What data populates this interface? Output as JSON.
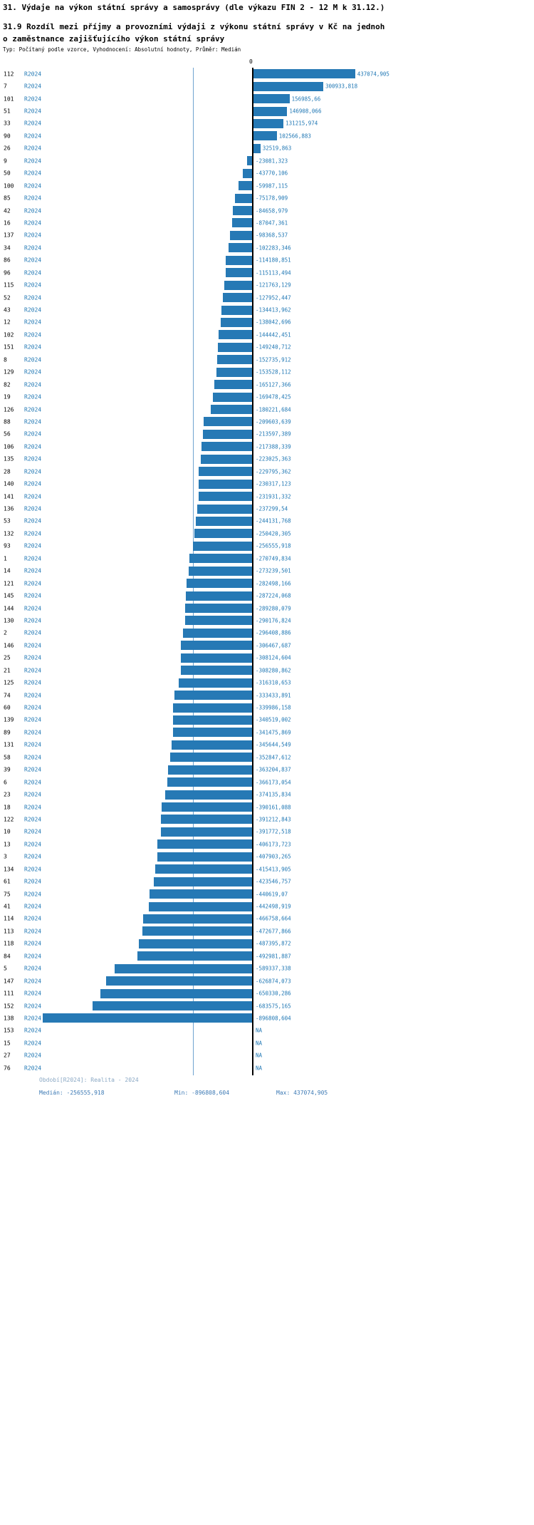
{
  "header": {
    "title": "31. Výdaje na výkon státní správy a samosprávy (dle výkazu FIN 2 - 12 M k 31.12.)",
    "subtitle_line1": "31.9 Rozdíl mezi příjmy a provozními výdaji z výkonu státní správy v Kč na jednoh",
    "subtitle_line2": "o zaměstnance zajišťujícího výkon státní správy",
    "meta": "Typ: Počítaný podle vzorce, Vyhodnocení: Absolutní hodnoty, Průměr: Medián"
  },
  "axis": {
    "zero_tick": "0"
  },
  "footer": {
    "period": "Období[R2024]: Realita - 2024",
    "median": "Medián: -256555,918",
    "min": "Min: -896808,604",
    "max": "Max: 437074,905"
  },
  "colors": {
    "bar": "#2679b5",
    "link": "#1f77b4",
    "median_line": "#6fa3cf",
    "zero_line": "#000000"
  },
  "chart_data": {
    "type": "bar",
    "orientation": "horizontal",
    "series": "R2024",
    "title": "31.9 Rozdíl mezi příjmy a provozními výdaji z výkonu státní správy v Kč na jednoho zaměstnance zajišťujícího výkon státní správy",
    "min": -896808.604,
    "max": 437074.905,
    "median": -256555.918,
    "rows": [
      {
        "id": "112",
        "value": 437074.905,
        "display": "437074,905"
      },
      {
        "id": "7",
        "value": 300933.818,
        "display": "300933,818"
      },
      {
        "id": "101",
        "value": 156985.66,
        "display": "156985,66"
      },
      {
        "id": "51",
        "value": 146908.066,
        "display": "146908,066"
      },
      {
        "id": "33",
        "value": 131215.974,
        "display": "131215,974"
      },
      {
        "id": "90",
        "value": 102566.883,
        "display": "102566,883"
      },
      {
        "id": "26",
        "value": 32519.863,
        "display": "32519,863"
      },
      {
        "id": "9",
        "value": -23081.323,
        "display": "-23081,323"
      },
      {
        "id": "50",
        "value": -43770.106,
        "display": "-43770,106"
      },
      {
        "id": "100",
        "value": -59987.115,
        "display": "-59987,115"
      },
      {
        "id": "85",
        "value": -75178.909,
        "display": "-75178,909"
      },
      {
        "id": "42",
        "value": -84658.979,
        "display": "-84658,979"
      },
      {
        "id": "16",
        "value": -87047.361,
        "display": "-87047,361"
      },
      {
        "id": "137",
        "value": -98368.537,
        "display": "-98368,537"
      },
      {
        "id": "34",
        "value": -102283.346,
        "display": "-102283,346"
      },
      {
        "id": "86",
        "value": -114180.851,
        "display": "-114180,851"
      },
      {
        "id": "96",
        "value": -115113.494,
        "display": "-115113,494"
      },
      {
        "id": "115",
        "value": -121763.129,
        "display": "-121763,129"
      },
      {
        "id": "52",
        "value": -127952.447,
        "display": "-127952,447"
      },
      {
        "id": "43",
        "value": -134413.962,
        "display": "-134413,962"
      },
      {
        "id": "12",
        "value": -138042.696,
        "display": "-138042,696"
      },
      {
        "id": "102",
        "value": -144442.451,
        "display": "-144442,451"
      },
      {
        "id": "151",
        "value": -149240.712,
        "display": "-149240,712"
      },
      {
        "id": "8",
        "value": -152735.912,
        "display": "-152735,912"
      },
      {
        "id": "129",
        "value": -153528.112,
        "display": "-153528,112"
      },
      {
        "id": "82",
        "value": -165127.366,
        "display": "-165127,366"
      },
      {
        "id": "19",
        "value": -169478.425,
        "display": "-169478,425"
      },
      {
        "id": "126",
        "value": -180221.684,
        "display": "-180221,684"
      },
      {
        "id": "88",
        "value": -209603.639,
        "display": "-209603,639"
      },
      {
        "id": "56",
        "value": -213597.389,
        "display": "-213597,389"
      },
      {
        "id": "106",
        "value": -217388.339,
        "display": "-217388,339"
      },
      {
        "id": "135",
        "value": -223025.363,
        "display": "-223025,363"
      },
      {
        "id": "28",
        "value": -229795.362,
        "display": "-229795,362"
      },
      {
        "id": "140",
        "value": -230317.123,
        "display": "-230317,123"
      },
      {
        "id": "141",
        "value": -231931.332,
        "display": "-231931,332"
      },
      {
        "id": "136",
        "value": -237299.54,
        "display": "-237299,54"
      },
      {
        "id": "53",
        "value": -244131.768,
        "display": "-244131,768"
      },
      {
        "id": "132",
        "value": -250420.305,
        "display": "-250420,305"
      },
      {
        "id": "93",
        "value": -256555.918,
        "display": "-256555,918"
      },
      {
        "id": "1",
        "value": -270749.834,
        "display": "-270749,834"
      },
      {
        "id": "14",
        "value": -273239.501,
        "display": "-273239,501"
      },
      {
        "id": "121",
        "value": -282498.166,
        "display": "-282498,166"
      },
      {
        "id": "145",
        "value": -287224.068,
        "display": "-287224,068"
      },
      {
        "id": "144",
        "value": -289280.079,
        "display": "-289280,079"
      },
      {
        "id": "130",
        "value": -290176.824,
        "display": "-290176,824"
      },
      {
        "id": "2",
        "value": -296408.886,
        "display": "-296408,886"
      },
      {
        "id": "146",
        "value": -306467.687,
        "display": "-306467,687"
      },
      {
        "id": "25",
        "value": -308124.604,
        "display": "-308124,604"
      },
      {
        "id": "21",
        "value": -308280.862,
        "display": "-308280,862"
      },
      {
        "id": "125",
        "value": -316310.653,
        "display": "-316310,653"
      },
      {
        "id": "74",
        "value": -333433.891,
        "display": "-333433,891"
      },
      {
        "id": "60",
        "value": -339986.158,
        "display": "-339986,158"
      },
      {
        "id": "139",
        "value": -340519.002,
        "display": "-340519,002"
      },
      {
        "id": "89",
        "value": -341475.869,
        "display": "-341475,869"
      },
      {
        "id": "131",
        "value": -345644.549,
        "display": "-345644,549"
      },
      {
        "id": "58",
        "value": -352847.612,
        "display": "-352847,612"
      },
      {
        "id": "39",
        "value": -363204.837,
        "display": "-363204,837"
      },
      {
        "id": "6",
        "value": -366173.054,
        "display": "-366173,054"
      },
      {
        "id": "23",
        "value": -374135.834,
        "display": "-374135,834"
      },
      {
        "id": "18",
        "value": -390161.088,
        "display": "-390161,088"
      },
      {
        "id": "122",
        "value": -391212.843,
        "display": "-391212,843"
      },
      {
        "id": "10",
        "value": -391772.518,
        "display": "-391772,518"
      },
      {
        "id": "13",
        "value": -406173.723,
        "display": "-406173,723"
      },
      {
        "id": "3",
        "value": -407903.265,
        "display": "-407903,265"
      },
      {
        "id": "134",
        "value": -415413.905,
        "display": "-415413,905"
      },
      {
        "id": "61",
        "value": -423546.757,
        "display": "-423546,757"
      },
      {
        "id": "75",
        "value": -440619.07,
        "display": "-440619,07"
      },
      {
        "id": "41",
        "value": -442498.919,
        "display": "-442498,919"
      },
      {
        "id": "114",
        "value": -466758.664,
        "display": "-466758,664"
      },
      {
        "id": "113",
        "value": -472677.866,
        "display": "-472677,866"
      },
      {
        "id": "118",
        "value": -487395.872,
        "display": "-487395,872"
      },
      {
        "id": "84",
        "value": -492981.887,
        "display": "-492981,887"
      },
      {
        "id": "5",
        "value": -589337.338,
        "display": "-589337,338"
      },
      {
        "id": "147",
        "value": -626874.073,
        "display": "-626874,073"
      },
      {
        "id": "111",
        "value": -650330.286,
        "display": "-650330,286"
      },
      {
        "id": "152",
        "value": -683575.165,
        "display": "-683575,165"
      },
      {
        "id": "138",
        "value": -896808.604,
        "display": "-896808,604"
      },
      {
        "id": "153",
        "value": null,
        "display": "NA"
      },
      {
        "id": "15",
        "value": null,
        "display": "NA"
      },
      {
        "id": "27",
        "value": null,
        "display": "NA"
      },
      {
        "id": "76",
        "value": null,
        "display": "NA"
      }
    ]
  }
}
